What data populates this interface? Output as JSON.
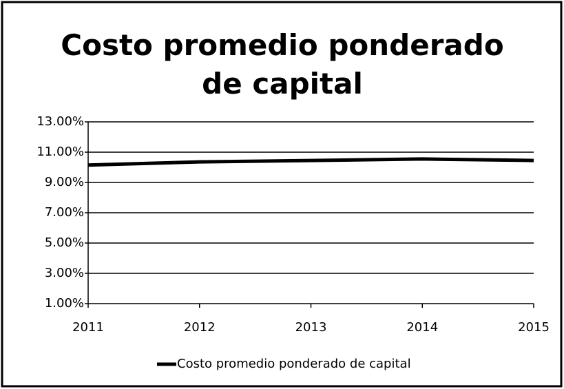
{
  "chart_data": {
    "type": "line",
    "title": "Costo promedio ponderado de capital",
    "x": [
      2011,
      2012,
      2013,
      2014,
      2015
    ],
    "xlim": [
      2011,
      2015
    ],
    "xticks": [
      2011,
      2012,
      2013,
      2014,
      2015
    ],
    "series": [
      {
        "name": "Costo promedio ponderado de capital",
        "color": "#000000",
        "values": [
          10.15,
          10.36,
          10.45,
          10.55,
          10.45
        ]
      }
    ],
    "ylim": [
      1,
      13
    ],
    "yticks": [
      {
        "value": 1,
        "label": "1.00%"
      },
      {
        "value": 3,
        "label": "3.00%"
      },
      {
        "value": 5,
        "label": "5.00%"
      },
      {
        "value": 7,
        "label": "7.00%"
      },
      {
        "value": 9,
        "label": "9.00%"
      },
      {
        "value": 11,
        "label": "11.00%"
      },
      {
        "value": 13,
        "label": "13.00%"
      }
    ],
    "grid": true,
    "legend": "bottom"
  }
}
